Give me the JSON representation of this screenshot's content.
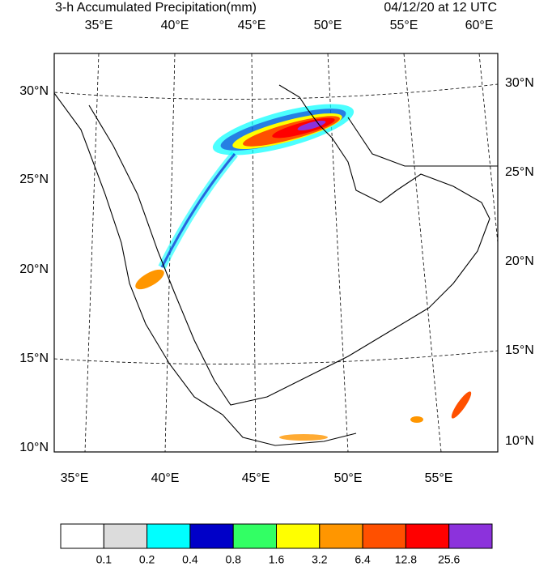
{
  "header": {
    "title": "3-h Accumulated Precipitation(mm)",
    "valid_time": "04/12/20 at 12 UTC"
  },
  "map": {
    "top_lon_labels": [
      "35°E",
      "40°E",
      "45°E",
      "50°E",
      "55°E",
      "60°E"
    ],
    "bottom_lon_labels": [
      "35°E",
      "40°E",
      "45°E",
      "50°E",
      "55°E"
    ],
    "left_lat_labels": [
      "30°N",
      "25°N",
      "20°N",
      "15°N",
      "10°N"
    ],
    "right_lat_labels": [
      "30°N",
      "25°N",
      "20°N",
      "15°N",
      "10°N"
    ]
  },
  "legend": {
    "colors": [
      "#ffffff",
      "#dcdcdc",
      "#00ffff",
      "#0000c8",
      "#32ff64",
      "#ffff00",
      "#ff9600",
      "#ff5000",
      "#ff0000",
      "#8c32dc"
    ],
    "labels": [
      "0.1",
      "0.2",
      "0.4",
      "0.8",
      "1.6",
      "3.2",
      "6.4",
      "12.8",
      "25.6"
    ]
  }
}
